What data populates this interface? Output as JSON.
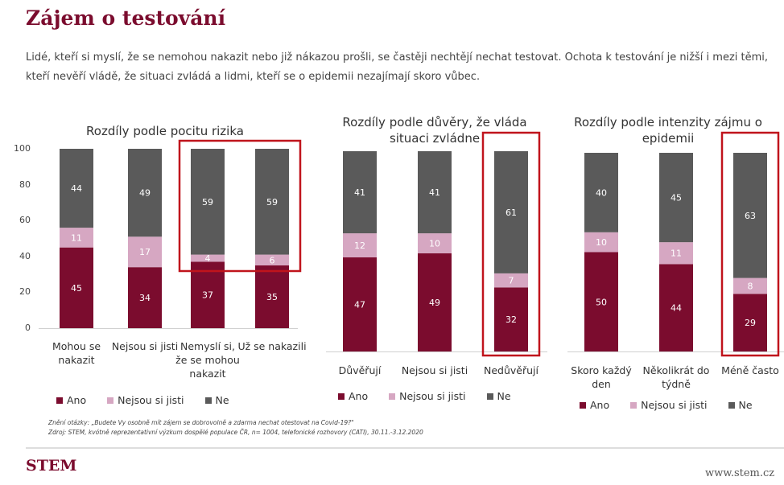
{
  "title": "Zájem o testování",
  "subtitle": "Lidé, kteří si myslí, že se nemohou nakazit nebo již nákazou prošli, se častěji nechtějí nechat testovat. Ochota k testování je nižší i mezi těmi, kteří nevěří vládě, že situaci zvládá a lidmi, kteří se o epidemii nezajímají skoro vůbec.",
  "footnotes": [
    "Znění otázky: „Budete Vy osobně mít zájem se dobrovolně a zdarma nechat otestovat na Covid-19?\"",
    "Zdroj: STEM, kvótně reprezentativní výzkum dospělé populace ČR, n= 1004, telefonické rozhovory (CATI), 30.11.-3.12.2020"
  ],
  "logo": "STEM",
  "url": "www.stem.cz",
  "chart_data": [
    {
      "type": "stacked_bar",
      "title": "Rozdíly podle pocitu rizika",
      "categories": [
        "Mohou se nakazit",
        "Nejsou si jisti",
        "Nemyslí si, že se mohou nakazit",
        "Už se nakazili"
      ],
      "series": [
        {
          "name": "Ano",
          "color": "#7b0c2e",
          "values": [
            45,
            34,
            37,
            35
          ]
        },
        {
          "name": "Nejsou si jisti",
          "color": "#d6a7c2",
          "values": [
            11,
            17,
            4,
            6
          ]
        },
        {
          "name": "Ne",
          "color": "#5a5a5a",
          "values": [
            44,
            49,
            59,
            59
          ]
        }
      ],
      "ylim": [
        0,
        100
      ],
      "yticks": [
        0,
        20,
        40,
        60,
        80,
        100
      ]
    },
    {
      "type": "stacked_bar",
      "title": "Rozdíly podle důvěry, že vláda situaci zvládne",
      "categories": [
        "Důvěřují",
        "Nejsou si jisti",
        "Nedůvěřují"
      ],
      "series": [
        {
          "name": "Ano",
          "color": "#7b0c2e",
          "values": [
            47,
            49,
            32
          ]
        },
        {
          "name": "Nejsou si jisti",
          "color": "#d6a7c2",
          "values": [
            12,
            10,
            7
          ]
        },
        {
          "name": "Ne",
          "color": "#5a5a5a",
          "values": [
            41,
            41,
            61
          ]
        }
      ]
    },
    {
      "type": "stacked_bar",
      "title": "Rozdíly podle intenzity zájmu o epidemii",
      "categories": [
        "Skoro každý den",
        "Několikrát do týdně",
        "Méně často"
      ],
      "series": [
        {
          "name": "Ano",
          "color": "#7b0c2e",
          "values": [
            50,
            44,
            29
          ]
        },
        {
          "name": "Nejsou si jisti",
          "color": "#d6a7c2",
          "values": [
            10,
            11,
            8
          ]
        },
        {
          "name": "Ne",
          "color": "#5a5a5a",
          "values": [
            40,
            45,
            63
          ]
        }
      ]
    }
  ]
}
